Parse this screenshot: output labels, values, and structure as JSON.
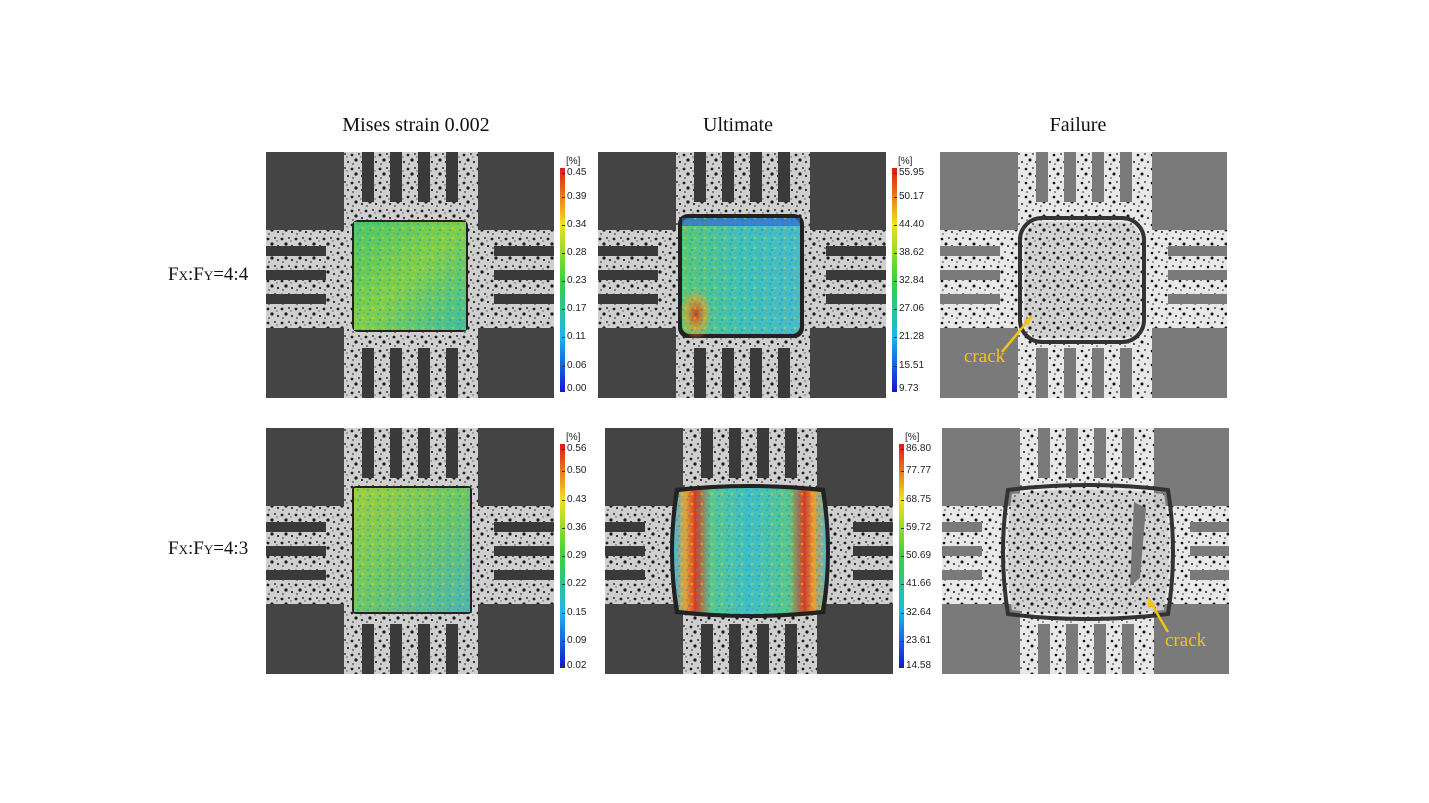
{
  "columns": {
    "mises": "Mises strain 0.002",
    "ultimate": "Ultimate",
    "failure": "Failure"
  },
  "rows": [
    {
      "label_main": "F",
      "sub1": "X",
      "mid": ":F",
      "sub2": "Y",
      "ratio": "=4:4"
    },
    {
      "label_main": "F",
      "sub1": "X",
      "mid": ":F",
      "sub2": "Y",
      "ratio": "=4:3"
    }
  ],
  "colorbars": {
    "r1_mises": {
      "unit": "[%]",
      "ticks": [
        "0.45",
        "0.39",
        "0.34",
        "0.28",
        "0.23",
        "0.17",
        "0.11",
        "0.06",
        "0.00"
      ]
    },
    "r1_ultimate": {
      "unit": "[%]",
      "ticks": [
        "55.95",
        "50.17",
        "44.40",
        "38.62",
        "32.84",
        "27.06",
        "21.28",
        "15.51",
        "9.73"
      ]
    },
    "r2_mises": {
      "unit": "[%]",
      "ticks": [
        "0.56",
        "0.50",
        "0.43",
        "0.36",
        "0.29",
        "0.22",
        "0.15",
        "0.09",
        "0.02"
      ]
    },
    "r2_ultimate": {
      "unit": "[%]",
      "ticks": [
        "86.80",
        "77.77",
        "68.75",
        "59.72",
        "50.69",
        "41.66",
        "32.64",
        "23.61",
        "14.58"
      ]
    }
  },
  "annotations": {
    "crack1": "crack",
    "crack2": "crack"
  },
  "colors": {
    "annotation": "#f2c318",
    "jet_high": "#d7191c",
    "jet_low": "#2b3bd6"
  }
}
